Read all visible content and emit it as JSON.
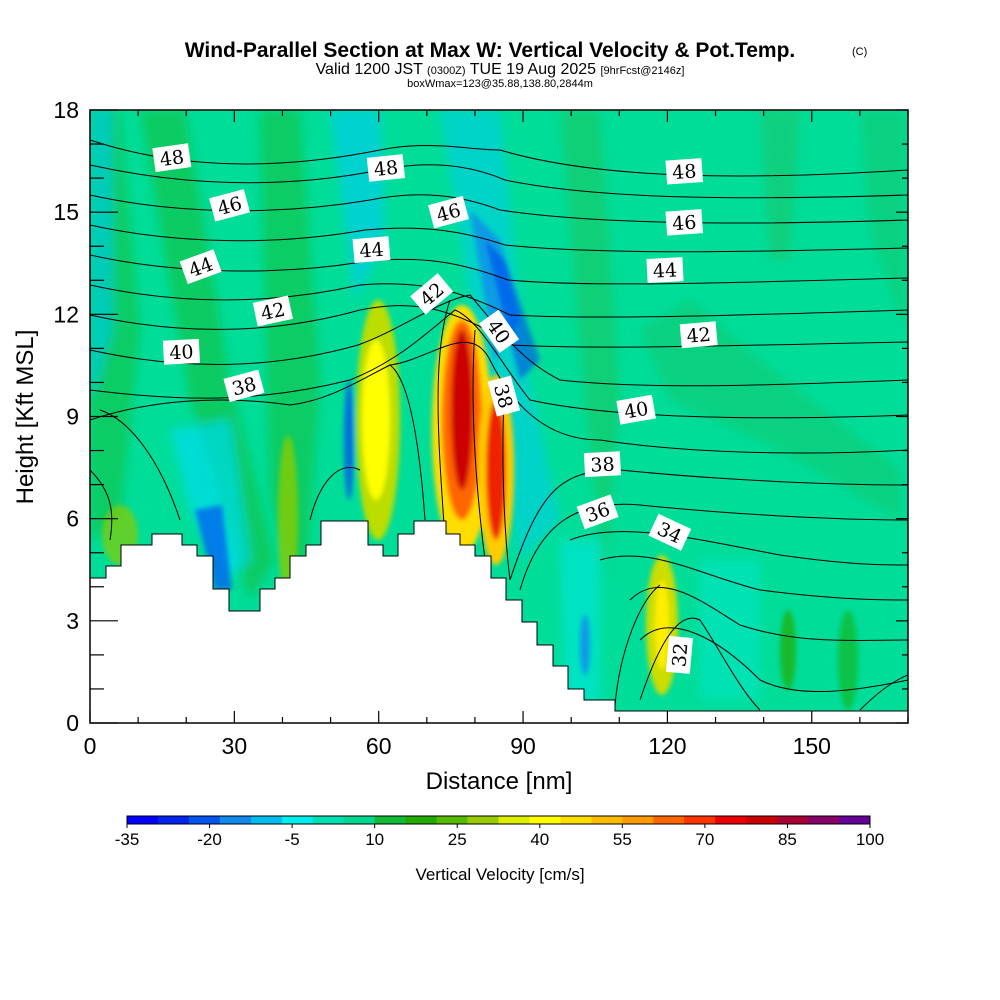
{
  "chart_data": {
    "type": "heatmap",
    "title": "Wind-Parallel Section at Max W: Vertical Velocity & Pot.Temp.",
    "title_mark": "(C)",
    "subtitle_parts": [
      "Valid 1200 JST",
      "(0300Z)",
      "TUE 19 Aug 2025",
      "[9hrFcst@2146z]"
    ],
    "subtitle2": "boxWmax=123@35.88,138.80,2844m",
    "xlabel": "Distance [nm]",
    "ylabel": "Height [Kft MSL]",
    "xlim": [
      0,
      170
    ],
    "ylim": [
      0,
      18
    ],
    "x_ticks": [
      0,
      30,
      60,
      90,
      120,
      150
    ],
    "y_ticks": [
      0,
      3,
      6,
      9,
      12,
      15,
      18
    ],
    "colorbar": {
      "title": "Vertical Velocity [cm/s]",
      "tick_labels": [
        "-35",
        "-20",
        "-5",
        "10",
        "25",
        "40",
        "55",
        "70",
        "85",
        "100"
      ],
      "colors": [
        "#0000ff",
        "#0022ee",
        "#0055ee",
        "#1188ee",
        "#00bbee",
        "#00eeee",
        "#00e0b0",
        "#00d890",
        "#11bb33",
        "#22aa00",
        "#55bb00",
        "#99cc00",
        "#ddee00",
        "#ffff00",
        "#ffdd00",
        "#ffbb00",
        "#ff9900",
        "#ff6600",
        "#ff3300",
        "#ee0000",
        "#cc0000",
        "#aa0033",
        "#880066",
        "#660099"
      ]
    },
    "isentrope_labels": [
      {
        "text": "48",
        "x": 17,
        "y": 16.6
      },
      {
        "text": "48",
        "x": 61.5,
        "y": 16.3
      },
      {
        "text": "48",
        "x": 123.5,
        "y": 16.2
      },
      {
        "text": "46",
        "x": 29,
        "y": 15.2
      },
      {
        "text": "46",
        "x": 74.5,
        "y": 15.0
      },
      {
        "text": "46",
        "x": 123.5,
        "y": 14.7
      },
      {
        "text": "44",
        "x": 23,
        "y": 13.4
      },
      {
        "text": "44",
        "x": 58.5,
        "y": 13.9
      },
      {
        "text": "44",
        "x": 119.5,
        "y": 13.3
      },
      {
        "text": "42",
        "x": 38,
        "y": 12.1
      },
      {
        "text": "42",
        "x": 71,
        "y": 12.6
      },
      {
        "text": "42",
        "x": 126.5,
        "y": 11.4
      },
      {
        "text": "40",
        "x": 19,
        "y": 10.9
      },
      {
        "text": "40",
        "x": 85,
        "y": 11.5
      },
      {
        "text": "40",
        "x": 113.5,
        "y": 9.2
      },
      {
        "text": "38",
        "x": 32,
        "y": 9.9
      },
      {
        "text": "38",
        "x": 86,
        "y": 9.6
      },
      {
        "text": "38",
        "x": 106.5,
        "y": 7.6
      },
      {
        "text": "36",
        "x": 105.5,
        "y": 6.2
      },
      {
        "text": "34",
        "x": 120.5,
        "y": 5.6
      },
      {
        "text": "32",
        "x": 122.5,
        "y": 2.0
      }
    ]
  }
}
